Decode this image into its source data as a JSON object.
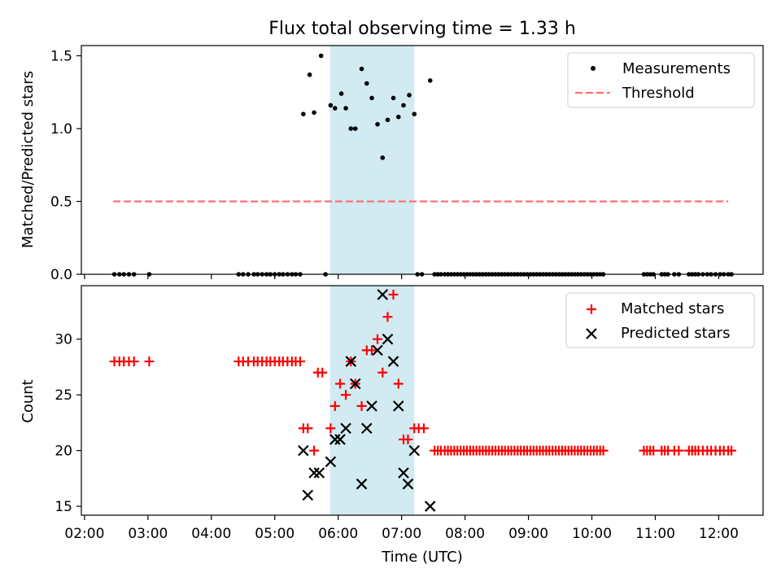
{
  "chart_data": [
    {
      "type": "scatter",
      "title": "Flux total observing time = 1.33 h",
      "ylabel": "Matched/Predicted stars",
      "xlabel": "",
      "xlim": [
        1.95,
        12.7
      ],
      "ylim": [
        0.0,
        1.57
      ],
      "yticks": [
        0.0,
        0.5,
        1.0,
        1.5
      ],
      "ytick_labels": [
        "0.0",
        "0.5",
        "1.0",
        "1.5"
      ],
      "shaded_span": [
        5.87,
        7.2
      ],
      "legend": {
        "placement": "top-right",
        "entries": [
          "Measurements",
          "Threshold"
        ]
      },
      "series": [
        {
          "name": "Measurements",
          "marker": "dot",
          "color": "#000000",
          "points": [
            [
              2.47,
              0
            ],
            [
              2.55,
              0
            ],
            [
              2.62,
              0
            ],
            [
              2.7,
              0
            ],
            [
              2.78,
              0
            ],
            [
              3.02,
              0
            ],
            [
              4.43,
              0
            ],
            [
              4.5,
              0
            ],
            [
              4.58,
              0
            ],
            [
              4.67,
              0
            ],
            [
              4.73,
              0
            ],
            [
              4.8,
              0
            ],
            [
              4.87,
              0
            ],
            [
              4.93,
              0
            ],
            [
              5.0,
              0
            ],
            [
              5.07,
              0
            ],
            [
              5.13,
              0
            ],
            [
              5.2,
              0
            ],
            [
              5.27,
              0
            ],
            [
              5.33,
              0
            ],
            [
              5.4,
              0
            ],
            [
              5.45,
              1.1
            ],
            [
              5.55,
              1.37
            ],
            [
              5.62,
              1.11
            ],
            [
              5.73,
              1.5
            ],
            [
              5.8,
              0
            ],
            [
              5.88,
              1.16
            ],
            [
              5.95,
              1.14
            ],
            [
              6.05,
              1.24
            ],
            [
              6.12,
              1.14
            ],
            [
              6.2,
              1.0
            ],
            [
              6.27,
              1.0
            ],
            [
              6.37,
              1.41
            ],
            [
              6.45,
              1.31
            ],
            [
              6.53,
              1.21
            ],
            [
              6.62,
              1.03
            ],
            [
              6.7,
              0.8
            ],
            [
              6.78,
              1.06
            ],
            [
              6.87,
              1.21
            ],
            [
              6.95,
              1.08
            ],
            [
              7.03,
              1.16
            ],
            [
              7.12,
              1.23
            ],
            [
              7.2,
              1.1
            ],
            [
              7.25,
              0
            ],
            [
              7.32,
              0
            ],
            [
              7.45,
              1.33
            ],
            [
              7.52,
              0
            ],
            [
              7.57,
              0
            ],
            [
              7.62,
              0
            ],
            [
              7.68,
              0
            ],
            [
              7.73,
              0
            ],
            [
              7.78,
              0
            ],
            [
              7.83,
              0
            ],
            [
              7.88,
              0
            ],
            [
              7.93,
              0
            ],
            [
              7.98,
              0
            ],
            [
              8.03,
              0
            ],
            [
              8.08,
              0
            ],
            [
              8.13,
              0
            ],
            [
              8.18,
              0
            ],
            [
              8.23,
              0
            ],
            [
              8.28,
              0
            ],
            [
              8.33,
              0
            ],
            [
              8.38,
              0
            ],
            [
              8.43,
              0
            ],
            [
              8.48,
              0
            ],
            [
              8.53,
              0
            ],
            [
              8.58,
              0
            ],
            [
              8.63,
              0
            ],
            [
              8.68,
              0
            ],
            [
              8.73,
              0
            ],
            [
              8.78,
              0
            ],
            [
              8.83,
              0
            ],
            [
              8.88,
              0
            ],
            [
              8.93,
              0
            ],
            [
              8.98,
              0
            ],
            [
              9.03,
              0
            ],
            [
              9.08,
              0
            ],
            [
              9.13,
              0
            ],
            [
              9.18,
              0
            ],
            [
              9.23,
              0
            ],
            [
              9.28,
              0
            ],
            [
              9.33,
              0
            ],
            [
              9.38,
              0
            ],
            [
              9.43,
              0
            ],
            [
              9.48,
              0
            ],
            [
              9.53,
              0
            ],
            [
              9.58,
              0
            ],
            [
              9.63,
              0
            ],
            [
              9.68,
              0
            ],
            [
              9.73,
              0
            ],
            [
              9.78,
              0
            ],
            [
              9.83,
              0
            ],
            [
              9.88,
              0
            ],
            [
              9.93,
              0
            ],
            [
              9.98,
              0
            ],
            [
              10.03,
              0
            ],
            [
              10.08,
              0
            ],
            [
              10.13,
              0
            ],
            [
              10.18,
              0
            ],
            [
              10.82,
              0
            ],
            [
              10.87,
              0
            ],
            [
              10.92,
              0
            ],
            [
              10.97,
              0
            ],
            [
              11.1,
              0
            ],
            [
              11.15,
              0
            ],
            [
              11.2,
              0
            ],
            [
              11.3,
              0
            ],
            [
              11.37,
              0
            ],
            [
              11.53,
              0
            ],
            [
              11.58,
              0
            ],
            [
              11.63,
              0
            ],
            [
              11.68,
              0
            ],
            [
              11.75,
              0
            ],
            [
              11.82,
              0
            ],
            [
              11.88,
              0
            ],
            [
              11.95,
              0
            ],
            [
              12.02,
              0
            ],
            [
              12.08,
              0
            ],
            [
              12.15,
              0
            ],
            [
              12.2,
              0
            ]
          ]
        },
        {
          "name": "Threshold",
          "marker": "dashed-line",
          "color": "#ff7070",
          "points": [
            [
              2.45,
              0.5
            ],
            [
              12.15,
              0.5
            ]
          ]
        }
      ]
    },
    {
      "type": "scatter",
      "title": "",
      "ylabel": "Count",
      "xlabel": "Time (UTC)",
      "xlim": [
        1.95,
        12.7
      ],
      "ylim": [
        14.2,
        34.8
      ],
      "xticks": [
        2,
        3,
        4,
        5,
        6,
        7,
        8,
        9,
        10,
        11,
        12
      ],
      "xtick_labels": [
        "02:00",
        "03:00",
        "04:00",
        "05:00",
        "06:00",
        "07:00",
        "08:00",
        "09:00",
        "10:00",
        "11:00",
        "12:00"
      ],
      "yticks": [
        15,
        20,
        25,
        30
      ],
      "ytick_labels": [
        "15",
        "20",
        "25",
        "30"
      ],
      "shaded_span": [
        5.87,
        7.2
      ],
      "legend": {
        "placement": "top-right",
        "entries": [
          "Matched stars",
          "Predicted stars"
        ]
      },
      "series": [
        {
          "name": "Matched stars",
          "marker": "plus",
          "color": "#ff0000",
          "points": [
            [
              2.47,
              28
            ],
            [
              2.55,
              28
            ],
            [
              2.62,
              28
            ],
            [
              2.7,
              28
            ],
            [
              2.78,
              28
            ],
            [
              3.02,
              28
            ],
            [
              4.43,
              28
            ],
            [
              4.5,
              28
            ],
            [
              4.58,
              28
            ],
            [
              4.67,
              28
            ],
            [
              4.73,
              28
            ],
            [
              4.8,
              28
            ],
            [
              4.87,
              28
            ],
            [
              4.93,
              28
            ],
            [
              5.0,
              28
            ],
            [
              5.07,
              28
            ],
            [
              5.13,
              28
            ],
            [
              5.2,
              28
            ],
            [
              5.27,
              28
            ],
            [
              5.33,
              28
            ],
            [
              5.4,
              28
            ],
            [
              5.45,
              22
            ],
            [
              5.52,
              22
            ],
            [
              5.62,
              20
            ],
            [
              5.68,
              27
            ],
            [
              5.75,
              27
            ],
            [
              5.88,
              22
            ],
            [
              5.95,
              24
            ],
            [
              6.03,
              26
            ],
            [
              6.12,
              25
            ],
            [
              6.2,
              28
            ],
            [
              6.27,
              26
            ],
            [
              6.37,
              24
            ],
            [
              6.45,
              29
            ],
            [
              6.53,
              29
            ],
            [
              6.62,
              30
            ],
            [
              6.7,
              27
            ],
            [
              6.78,
              32
            ],
            [
              6.87,
              34
            ],
            [
              6.95,
              26
            ],
            [
              7.03,
              21
            ],
            [
              7.1,
              21
            ],
            [
              7.2,
              22
            ],
            [
              7.27,
              22
            ],
            [
              7.35,
              22
            ],
            [
              7.52,
              20
            ],
            [
              7.57,
              20
            ],
            [
              7.62,
              20
            ],
            [
              7.68,
              20
            ],
            [
              7.73,
              20
            ],
            [
              7.78,
              20
            ],
            [
              7.83,
              20
            ],
            [
              7.88,
              20
            ],
            [
              7.93,
              20
            ],
            [
              7.98,
              20
            ],
            [
              8.03,
              20
            ],
            [
              8.08,
              20
            ],
            [
              8.13,
              20
            ],
            [
              8.18,
              20
            ],
            [
              8.23,
              20
            ],
            [
              8.28,
              20
            ],
            [
              8.33,
              20
            ],
            [
              8.38,
              20
            ],
            [
              8.43,
              20
            ],
            [
              8.48,
              20
            ],
            [
              8.53,
              20
            ],
            [
              8.58,
              20
            ],
            [
              8.63,
              20
            ],
            [
              8.68,
              20
            ],
            [
              8.73,
              20
            ],
            [
              8.78,
              20
            ],
            [
              8.83,
              20
            ],
            [
              8.88,
              20
            ],
            [
              8.93,
              20
            ],
            [
              8.98,
              20
            ],
            [
              9.03,
              20
            ],
            [
              9.08,
              20
            ],
            [
              9.13,
              20
            ],
            [
              9.18,
              20
            ],
            [
              9.23,
              20
            ],
            [
              9.28,
              20
            ],
            [
              9.33,
              20
            ],
            [
              9.38,
              20
            ],
            [
              9.43,
              20
            ],
            [
              9.48,
              20
            ],
            [
              9.53,
              20
            ],
            [
              9.58,
              20
            ],
            [
              9.63,
              20
            ],
            [
              9.68,
              20
            ],
            [
              9.73,
              20
            ],
            [
              9.78,
              20
            ],
            [
              9.83,
              20
            ],
            [
              9.88,
              20
            ],
            [
              9.93,
              20
            ],
            [
              9.98,
              20
            ],
            [
              10.03,
              20
            ],
            [
              10.08,
              20
            ],
            [
              10.13,
              20
            ],
            [
              10.18,
              20
            ],
            [
              10.82,
              20
            ],
            [
              10.87,
              20
            ],
            [
              10.92,
              20
            ],
            [
              10.97,
              20
            ],
            [
              11.1,
              20
            ],
            [
              11.15,
              20
            ],
            [
              11.2,
              20
            ],
            [
              11.3,
              20
            ],
            [
              11.37,
              20
            ],
            [
              11.53,
              20
            ],
            [
              11.58,
              20
            ],
            [
              11.63,
              20
            ],
            [
              11.68,
              20
            ],
            [
              11.75,
              20
            ],
            [
              11.82,
              20
            ],
            [
              11.88,
              20
            ],
            [
              11.95,
              20
            ],
            [
              12.02,
              20
            ],
            [
              12.08,
              20
            ],
            [
              12.15,
              20
            ],
            [
              12.2,
              20
            ]
          ]
        },
        {
          "name": "Predicted stars",
          "marker": "x",
          "color": "#000000",
          "points": [
            [
              5.45,
              20
            ],
            [
              5.52,
              16
            ],
            [
              5.62,
              18
            ],
            [
              5.7,
              18
            ],
            [
              5.88,
              19
            ],
            [
              5.95,
              21
            ],
            [
              6.03,
              21
            ],
            [
              6.12,
              22
            ],
            [
              6.2,
              28
            ],
            [
              6.27,
              26
            ],
            [
              6.37,
              17
            ],
            [
              6.45,
              22
            ],
            [
              6.53,
              24
            ],
            [
              6.62,
              29
            ],
            [
              6.7,
              34
            ],
            [
              6.78,
              30
            ],
            [
              6.87,
              28
            ],
            [
              6.95,
              24
            ],
            [
              7.03,
              18
            ],
            [
              7.1,
              17
            ],
            [
              7.2,
              20
            ],
            [
              7.45,
              15
            ]
          ]
        }
      ]
    }
  ]
}
